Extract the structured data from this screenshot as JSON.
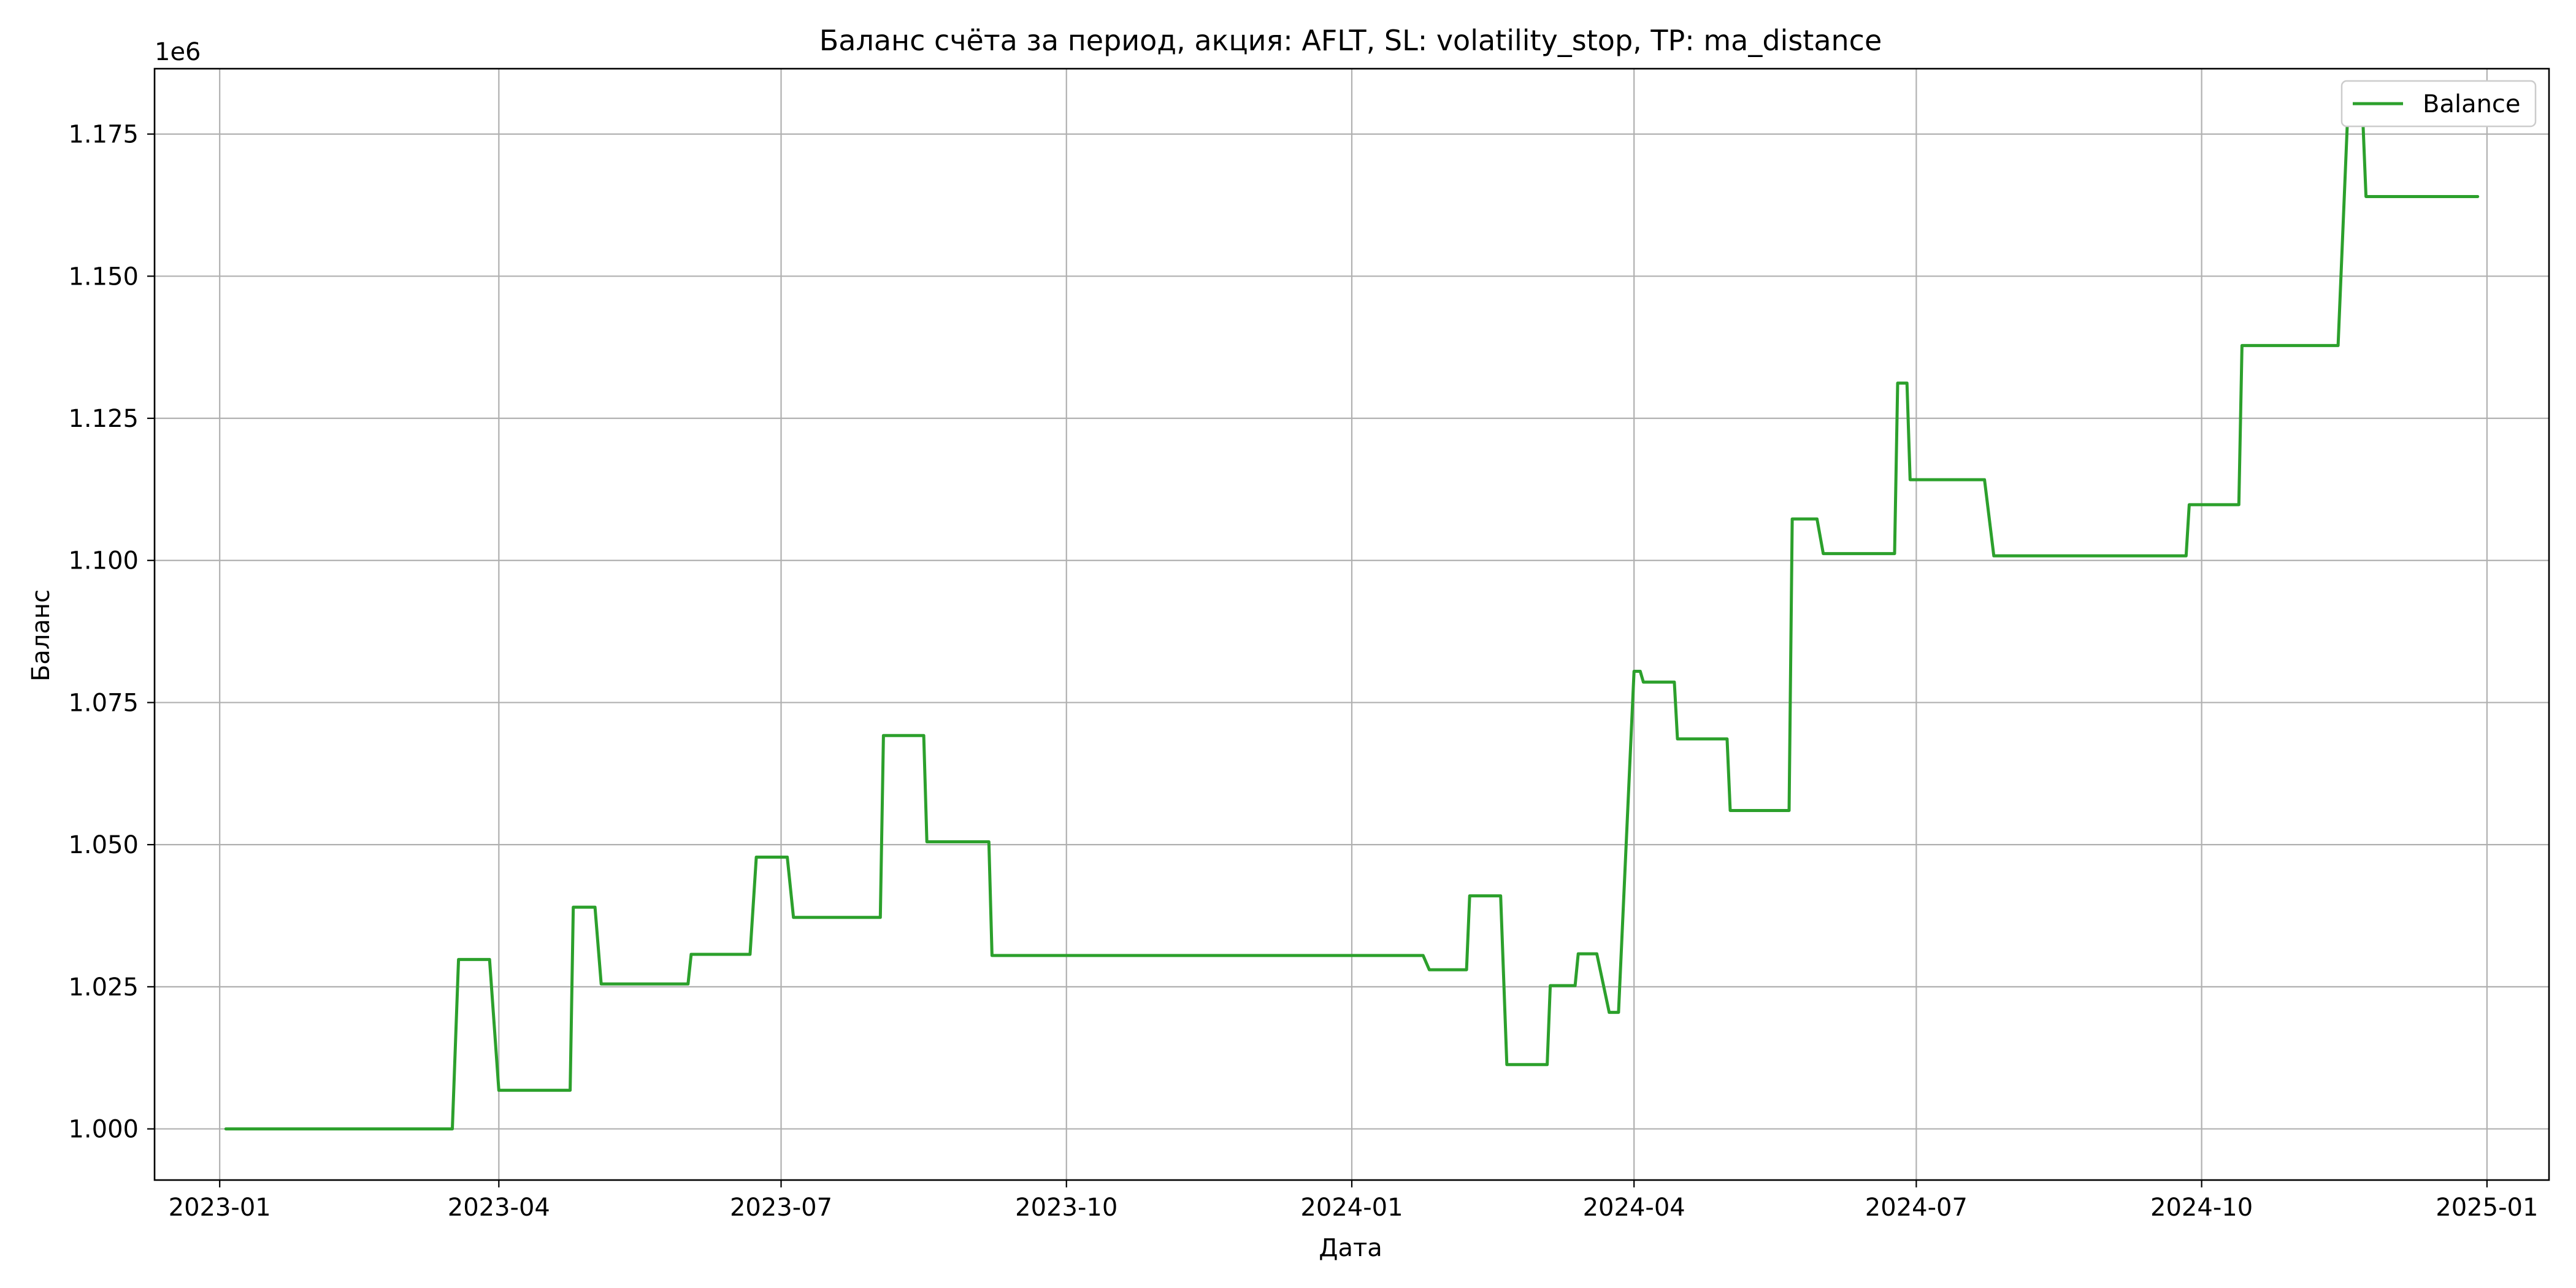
{
  "chart_data": {
    "type": "line",
    "title": "Баланс счёта за период, акция: AFLT, SL: volatility_stop, TP: ma_distance",
    "xlabel": "Дата",
    "ylabel": "Баланс",
    "y_offset_label": "1e6",
    "y_scale_factor": 1000000,
    "xlim": [
      "2022-12-11",
      "2025-01-21"
    ],
    "ylim": [
      0.991,
      1.1865
    ],
    "x_ticks": [
      "2023-01-01",
      "2023-04-01",
      "2023-07-01",
      "2023-10-01",
      "2024-01-01",
      "2024-04-01",
      "2024-07-01",
      "2024-10-01",
      "2025-01-01"
    ],
    "x_tick_labels": [
      "2023-01",
      "2023-04",
      "2023-07",
      "2023-10",
      "2024-01",
      "2024-04",
      "2024-07",
      "2024-10",
      "2025-01"
    ],
    "y_ticks": [
      1.0,
      1.025,
      1.05,
      1.075,
      1.1,
      1.125,
      1.15,
      1.175
    ],
    "y_tick_labels": [
      "1.000",
      "1.025",
      "1.050",
      "1.075",
      "1.100",
      "1.125",
      "1.150",
      "1.175"
    ],
    "grid": true,
    "legend_position": "top-right",
    "series": [
      {
        "name": "Balance",
        "color": "#2ca02c",
        "points": [
          [
            "2023-01-03",
            1.0
          ],
          [
            "2023-03-17",
            1.0
          ],
          [
            "2023-03-19",
            1.0298
          ],
          [
            "2023-03-29",
            1.0298
          ],
          [
            "2023-04-01",
            1.0068
          ],
          [
            "2023-04-24",
            1.0068
          ],
          [
            "2023-04-25",
            1.039
          ],
          [
            "2023-05-02",
            1.039
          ],
          [
            "2023-05-04",
            1.0255
          ],
          [
            "2023-06-01",
            1.0255
          ],
          [
            "2023-06-02",
            1.0307
          ],
          [
            "2023-06-21",
            1.0307
          ],
          [
            "2023-06-23",
            1.0478
          ],
          [
            "2023-07-03",
            1.0478
          ],
          [
            "2023-07-05",
            1.0372
          ],
          [
            "2023-08-02",
            1.0372
          ],
          [
            "2023-08-03",
            1.0692
          ],
          [
            "2023-08-16",
            1.0692
          ],
          [
            "2023-08-17",
            1.0505
          ],
          [
            "2023-09-06",
            1.0505
          ],
          [
            "2023-09-07",
            1.0305
          ],
          [
            "2024-01-24",
            1.0305
          ],
          [
            "2024-01-26",
            1.028
          ],
          [
            "2024-02-07",
            1.028
          ],
          [
            "2024-02-08",
            1.041
          ],
          [
            "2024-02-18",
            1.041
          ],
          [
            "2024-02-20",
            1.0113
          ],
          [
            "2024-03-04",
            1.0113
          ],
          [
            "2024-03-05",
            1.0252
          ],
          [
            "2024-03-13",
            1.0252
          ],
          [
            "2024-03-14",
            1.0308
          ],
          [
            "2024-03-20",
            1.0308
          ],
          [
            "2024-03-24",
            1.0205
          ],
          [
            "2024-03-27",
            1.0205
          ],
          [
            "2024-04-01",
            1.0805
          ],
          [
            "2024-04-03",
            1.0805
          ],
          [
            "2024-04-04",
            1.0786
          ],
          [
            "2024-04-14",
            1.0786
          ],
          [
            "2024-04-15",
            1.0686
          ],
          [
            "2024-05-01",
            1.0686
          ],
          [
            "2024-05-02",
            1.056
          ],
          [
            "2024-05-21",
            1.056
          ],
          [
            "2024-05-22",
            1.1073
          ],
          [
            "2024-05-30",
            1.1073
          ],
          [
            "2024-06-01",
            1.1012
          ],
          [
            "2024-06-24",
            1.1012
          ],
          [
            "2024-06-25",
            1.1312
          ],
          [
            "2024-06-28",
            1.1312
          ],
          [
            "2024-06-29",
            1.1142
          ],
          [
            "2024-07-23",
            1.1142
          ],
          [
            "2024-07-26",
            1.1008
          ],
          [
            "2024-09-26",
            1.1008
          ],
          [
            "2024-09-27",
            1.1098
          ],
          [
            "2024-10-13",
            1.1098
          ],
          [
            "2024-10-14",
            1.1378
          ],
          [
            "2024-11-14",
            1.1378
          ],
          [
            "2024-11-17",
            1.1772
          ],
          [
            "2024-11-22",
            1.1772
          ],
          [
            "2024-11-23",
            1.164
          ],
          [
            "2024-12-29",
            1.164
          ]
        ]
      }
    ]
  }
}
